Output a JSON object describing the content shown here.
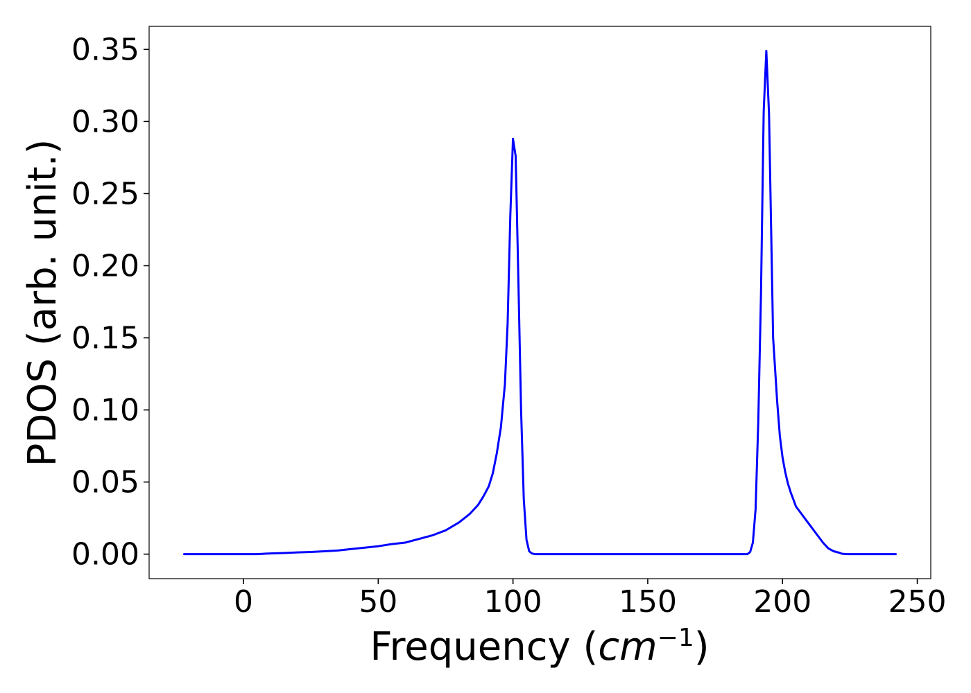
{
  "chart_data": {
    "type": "line",
    "title": "",
    "xlabel": {
      "text": "Frequency (",
      "math_base": "cm",
      "math_exp": "−1",
      "suffix": ")"
    },
    "ylabel": "PDOS (arb. unit.)",
    "xlim": [
      -35,
      255
    ],
    "ylim": [
      -0.017,
      0.366
    ],
    "xticks": [
      0,
      50,
      100,
      150,
      200,
      250
    ],
    "xtick_labels": [
      "0",
      "50",
      "100",
      "150",
      "200",
      "250"
    ],
    "yticks": [
      0.0,
      0.05,
      0.1,
      0.15,
      0.2,
      0.25,
      0.3,
      0.35
    ],
    "ytick_labels": [
      "0.00",
      "0.05",
      "0.10",
      "0.15",
      "0.20",
      "0.25",
      "0.30",
      "0.35"
    ],
    "grid": false,
    "series": [
      {
        "color": "#0000ff",
        "x": [
          -22,
          0,
          5,
          10,
          15,
          20,
          25,
          30,
          35,
          40,
          45,
          50,
          55,
          60,
          65,
          70,
          75,
          80,
          84,
          87,
          89,
          91,
          92.5,
          94,
          95.5,
          97,
          98,
          99,
          100,
          101,
          102,
          103,
          104,
          105,
          106,
          107,
          108,
          109,
          110,
          111,
          115,
          130,
          150,
          170,
          185,
          187,
          188,
          189,
          190,
          191,
          192,
          193,
          194,
          195,
          196.5,
          198,
          199,
          200,
          201,
          202,
          203,
          204,
          205,
          207,
          209,
          211,
          213,
          215,
          217,
          219,
          221,
          222,
          223,
          224,
          225,
          226,
          230,
          242
        ],
        "y": [
          0,
          0,
          0,
          0.0005,
          0.0008,
          0.0012,
          0.0015,
          0.002,
          0.0025,
          0.0035,
          0.0045,
          0.0055,
          0.007,
          0.008,
          0.0105,
          0.013,
          0.0165,
          0.022,
          0.028,
          0.034,
          0.04,
          0.047,
          0.056,
          0.07,
          0.088,
          0.118,
          0.16,
          0.235,
          0.288,
          0.276,
          0.19,
          0.1,
          0.038,
          0.01,
          0.002,
          0.0005,
          0,
          0,
          0,
          0,
          0,
          0,
          0,
          0,
          0,
          0,
          0.0015,
          0.008,
          0.031,
          0.092,
          0.18,
          0.307,
          0.349,
          0.305,
          0.15,
          0.106,
          0.082,
          0.067,
          0.057,
          0.049,
          0.043,
          0.038,
          0.033,
          0.028,
          0.023,
          0.018,
          0.013,
          0.008,
          0.004,
          0.002,
          0.001,
          0.0003,
          0.0001,
          0,
          0,
          0,
          0,
          0
        ]
      }
    ]
  }
}
